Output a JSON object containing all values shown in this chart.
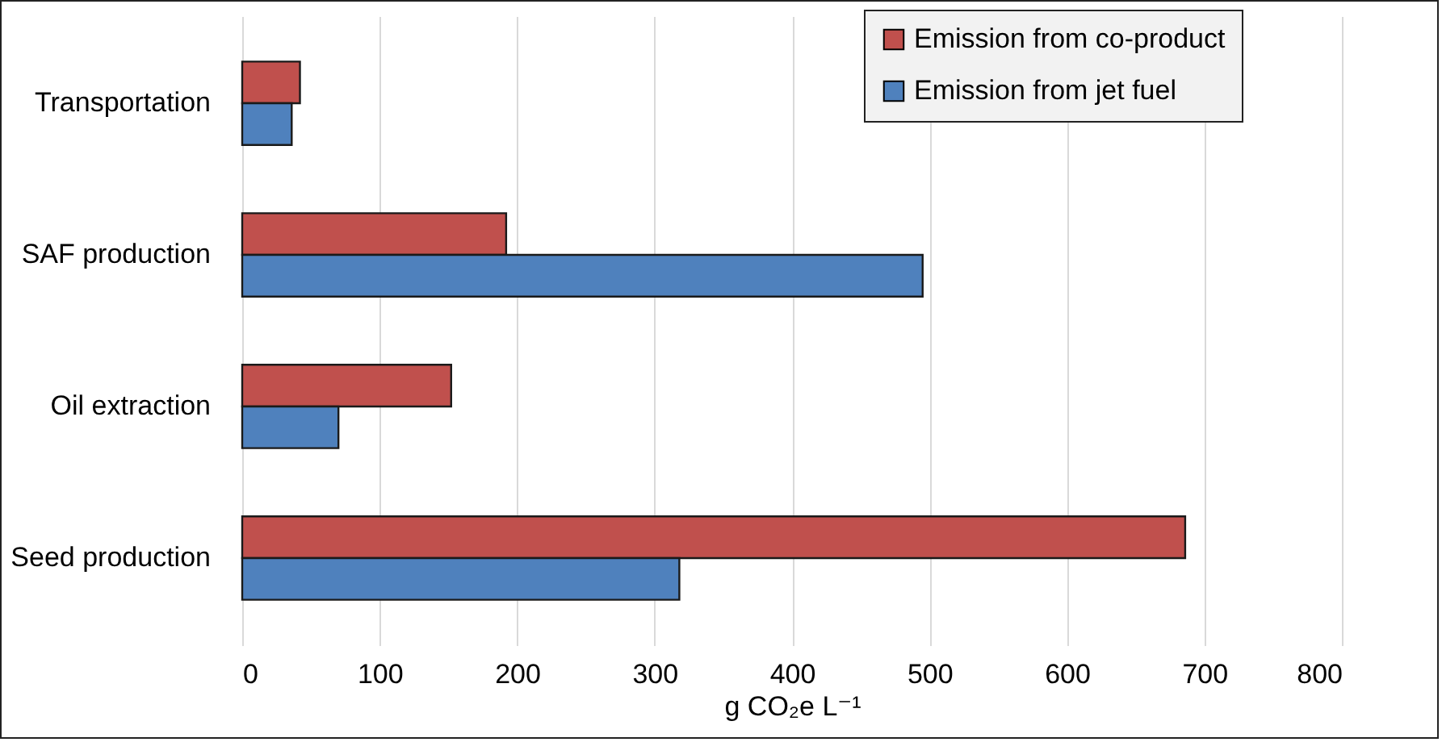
{
  "chart_data": {
    "type": "bar",
    "orientation": "horizontal",
    "xlabel": "g CO₂e L⁻¹",
    "categories": [
      "Transportation",
      "SAF production",
      "Oil extraction",
      "Seed production"
    ],
    "series": [
      {
        "name": "Emission from co-product",
        "color": "#c0504d",
        "values": [
          42,
          192,
          152,
          686
        ]
      },
      {
        "name": "Emission from jet fuel",
        "color": "#4f81bd",
        "values": [
          36,
          495,
          70,
          318
        ]
      }
    ],
    "xlim": [
      0,
      800
    ],
    "xticks": [
      0,
      100,
      200,
      300,
      400,
      500,
      600,
      700,
      800
    ],
    "grid": "x",
    "legend": "top right"
  }
}
